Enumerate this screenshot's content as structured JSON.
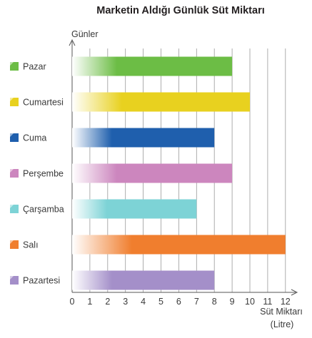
{
  "chart_data": {
    "type": "bar",
    "orientation": "horizontal",
    "title": "Marketin Aldığı Günlük Süt Miktarı",
    "ylabel": "Günler",
    "xlabel_line1": "Süt Miktarı",
    "xlabel_line2": "(Litre)",
    "categories": [
      "Pazar",
      "Cumartesi",
      "Cuma",
      "Perşembe",
      "Çarşamba",
      "Salı",
      "Pazartesi"
    ],
    "values": [
      9,
      10,
      8,
      9,
      7,
      12,
      8
    ],
    "colors": [
      "#6cbd45",
      "#e8d11f",
      "#1f5fad",
      "#cc86be",
      "#7dd3d6",
      "#f07e2e",
      "#a48fc9"
    ],
    "xlim": [
      0,
      12
    ],
    "xticks": [
      "0",
      "1",
      "2",
      "3",
      "4",
      "5",
      "6",
      "7",
      "8",
      "9",
      "10",
      "11",
      "12"
    ],
    "grid": true,
    "legend": "left"
  }
}
